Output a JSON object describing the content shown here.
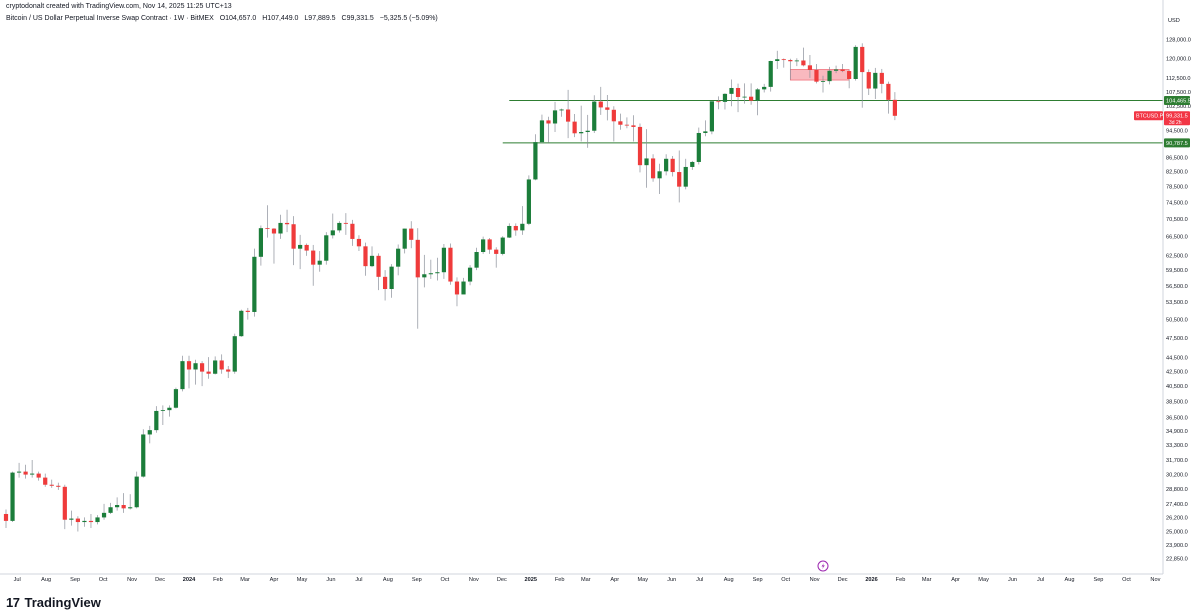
{
  "header": {
    "author": "cryptodonalt",
    "created_text": "created with TradingView.com, Nov 14, 2025 11:25 UTC+13"
  },
  "symbol": {
    "title": "Bitcoin / US Dollar Perpetual Inverse Swap Contract · 1W · BitMEX",
    "open": "O104,657.0",
    "high": "H107,449.0",
    "low": "L97,889.5",
    "close": "C99,331.5",
    "change": "−5,325.5 (−5.09%)"
  },
  "brand": {
    "name": "TradingView",
    "logo_icon": "tradingview-logo-icon"
  },
  "chart_data": {
    "type": "candlestick",
    "currency_label": "USD",
    "interval": "1W",
    "y_scale": "log",
    "ylim": [
      22300,
      132000
    ],
    "grid": false,
    "y_ticks": [
      "128,000.0",
      "120,000.0",
      "112,500.0",
      "107,500.0",
      "102,500.0",
      "94,500.0",
      "86,500.0",
      "82,500.0",
      "78,500.0",
      "74,500.0",
      "70,500.0",
      "66,500.0",
      "62,500.0",
      "59,500.0",
      "56,500.0",
      "53,500.0",
      "50,500.0",
      "47,500.0",
      "44,500.0",
      "42,500.0",
      "40,500.0",
      "38,500.0",
      "36,500.0",
      "34,900.0",
      "33,300.0",
      "31,700.0",
      "30,200.0",
      "28,800.0",
      "27,400.0",
      "26,200.0",
      "25,000.0",
      "23,900.0",
      "22,850.0"
    ],
    "x_ticks": [
      {
        "label": "Jul",
        "date": "2023-07-01",
        "year": false
      },
      {
        "label": "Aug",
        "date": "2023-08-01",
        "year": false
      },
      {
        "label": "Sep",
        "date": "2023-09-01",
        "year": false
      },
      {
        "label": "Oct",
        "date": "2023-10-01",
        "year": false
      },
      {
        "label": "Nov",
        "date": "2023-11-01",
        "year": false
      },
      {
        "label": "Dec",
        "date": "2023-12-01",
        "year": false
      },
      {
        "label": "2024",
        "date": "2024-01-01",
        "year": true
      },
      {
        "label": "Feb",
        "date": "2024-02-01",
        "year": false
      },
      {
        "label": "Mar",
        "date": "2024-03-01",
        "year": false
      },
      {
        "label": "Apr",
        "date": "2024-04-01",
        "year": false
      },
      {
        "label": "May",
        "date": "2024-05-01",
        "year": false
      },
      {
        "label": "Jun",
        "date": "2024-06-01",
        "year": false
      },
      {
        "label": "Jul",
        "date": "2024-07-01",
        "year": false
      },
      {
        "label": "Aug",
        "date": "2024-08-01",
        "year": false
      },
      {
        "label": "Sep",
        "date": "2024-09-01",
        "year": false
      },
      {
        "label": "Oct",
        "date": "2024-10-01",
        "year": false
      },
      {
        "label": "Nov",
        "date": "2024-11-01",
        "year": false
      },
      {
        "label": "Dec",
        "date": "2024-12-01",
        "year": false
      },
      {
        "label": "2025",
        "date": "2025-01-01",
        "year": true
      },
      {
        "label": "Feb",
        "date": "2025-02-01",
        "year": false
      },
      {
        "label": "Mar",
        "date": "2025-03-01",
        "year": false
      },
      {
        "label": "Apr",
        "date": "2025-04-01",
        "year": false
      },
      {
        "label": "May",
        "date": "2025-05-01",
        "year": false
      },
      {
        "label": "Jun",
        "date": "2025-06-01",
        "year": false
      },
      {
        "label": "Jul",
        "date": "2025-07-01",
        "year": false
      },
      {
        "label": "Aug",
        "date": "2025-08-01",
        "year": false
      },
      {
        "label": "Sep",
        "date": "2025-09-01",
        "year": false
      },
      {
        "label": "Oct",
        "date": "2025-10-01",
        "year": false
      },
      {
        "label": "Nov",
        "date": "2025-11-01",
        "year": false
      },
      {
        "label": "Dec",
        "date": "2025-12-01",
        "year": false
      },
      {
        "label": "2026",
        "date": "2026-01-01",
        "year": true
      },
      {
        "label": "Feb",
        "date": "2026-02-01",
        "year": false
      },
      {
        "label": "Mar",
        "date": "2026-03-01",
        "year": false
      },
      {
        "label": "Apr",
        "date": "2026-04-01",
        "year": false
      },
      {
        "label": "May",
        "date": "2026-05-01",
        "year": false
      },
      {
        "label": "Jun",
        "date": "2026-06-01",
        "year": false
      },
      {
        "label": "Jul",
        "date": "2026-07-01",
        "year": false
      },
      {
        "label": "Aug",
        "date": "2026-08-01",
        "year": false
      },
      {
        "label": "Sep",
        "date": "2026-09-01",
        "year": false
      },
      {
        "label": "Oct",
        "date": "2026-10-01",
        "year": false
      },
      {
        "label": "Nov",
        "date": "2026-11-01",
        "year": false
      }
    ],
    "first_candle_date": "2023-06-19",
    "candles": [
      [
        26500,
        26900,
        25300,
        25900
      ],
      [
        25900,
        30500,
        25800,
        30400
      ],
      [
        30400,
        31400,
        29900,
        30500
      ],
      [
        30500,
        31200,
        29800,
        30200
      ],
      [
        30200,
        31700,
        29900,
        30300
      ],
      [
        30300,
        30500,
        29600,
        29900
      ],
      [
        29900,
        30300,
        29000,
        29200
      ],
      [
        29200,
        29700,
        28900,
        29100
      ],
      [
        29100,
        29400,
        28700,
        29000
      ],
      [
        29000,
        29200,
        25200,
        26000
      ],
      [
        26000,
        26800,
        25500,
        26100
      ],
      [
        26100,
        26300,
        25000,
        25800
      ],
      [
        25800,
        26200,
        25400,
        25900
      ],
      [
        25900,
        26500,
        25300,
        25800
      ],
      [
        25800,
        26400,
        25600,
        26200
      ],
      [
        26200,
        27400,
        26000,
        26600
      ],
      [
        26600,
        27500,
        26500,
        27100
      ],
      [
        27100,
        28000,
        26800,
        27300
      ],
      [
        27300,
        28400,
        26600,
        27000
      ],
      [
        27000,
        28300,
        26900,
        27100
      ],
      [
        27100,
        30500,
        27000,
        30000
      ],
      [
        30000,
        35100,
        29900,
        34500
      ],
      [
        34500,
        35500,
        33500,
        35000
      ],
      [
        35000,
        37900,
        34700,
        37300
      ],
      [
        37300,
        38000,
        35600,
        37400
      ],
      [
        37400,
        38000,
        36600,
        37700
      ],
      [
        37700,
        40300,
        37600,
        40100
      ],
      [
        40100,
        44800,
        39800,
        44000
      ],
      [
        44000,
        44800,
        40200,
        42800
      ],
      [
        42800,
        44200,
        40700,
        43700
      ],
      [
        43700,
        44000,
        40500,
        42500
      ],
      [
        42500,
        44600,
        41500,
        42200
      ],
      [
        42200,
        44700,
        42100,
        44100
      ],
      [
        44100,
        45000,
        42200,
        42800
      ],
      [
        42800,
        43300,
        41600,
        42500
      ],
      [
        42500,
        48200,
        42200,
        47800
      ],
      [
        47800,
        52200,
        47700,
        52000
      ],
      [
        52000,
        52500,
        50500,
        51800
      ],
      [
        51800,
        63900,
        51000,
        62200
      ],
      [
        62200,
        69000,
        60400,
        68400
      ],
      [
        68400,
        73800,
        66300,
        68300
      ],
      [
        68300,
        68400,
        60800,
        67200
      ],
      [
        67200,
        71500,
        66000,
        69600
      ],
      [
        69600,
        72700,
        67500,
        69300
      ],
      [
        69300,
        71200,
        60500,
        63900
      ],
      [
        63900,
        66900,
        59700,
        64700
      ],
      [
        64700,
        65000,
        62400,
        63500
      ],
      [
        63500,
        64700,
        56500,
        60600
      ],
      [
        60600,
        63400,
        59200,
        61400
      ],
      [
        61400,
        67500,
        60600,
        66800
      ],
      [
        66800,
        71800,
        66100,
        67900
      ],
      [
        67900,
        70000,
        67400,
        69600
      ],
      [
        69600,
        71900,
        66900,
        69400
      ],
      [
        69400,
        70300,
        64500,
        66000
      ],
      [
        66000,
        66800,
        63400,
        64400
      ],
      [
        64400,
        65200,
        58400,
        60300
      ],
      [
        60300,
        64400,
        60100,
        62400
      ],
      [
        62400,
        62900,
        55700,
        58200
      ],
      [
        58200,
        59500,
        53800,
        55900
      ],
      [
        55900,
        60700,
        54300,
        60200
      ],
      [
        60200,
        64800,
        58500,
        63900
      ],
      [
        63900,
        68300,
        62900,
        68300
      ],
      [
        68300,
        70000,
        64000,
        65800
      ],
      [
        65800,
        68400,
        49000,
        58100
      ],
      [
        58100,
        62600,
        56200,
        58700
      ],
      [
        58700,
        61600,
        57800,
        58900
      ],
      [
        58900,
        62000,
        57500,
        59100
      ],
      [
        59100,
        64900,
        57800,
        64100
      ],
      [
        64100,
        65000,
        56700,
        57300
      ],
      [
        57300,
        58100,
        52800,
        54900
      ],
      [
        54900,
        58000,
        55000,
        57300
      ],
      [
        57300,
        60500,
        56600,
        60000
      ],
      [
        60000,
        64100,
        59500,
        63200
      ],
      [
        63200,
        66500,
        62800,
        65900
      ],
      [
        65900,
        66200,
        62800,
        63700
      ],
      [
        63700,
        64200,
        60000,
        62800
      ],
      [
        62800,
        66600,
        62500,
        66300
      ],
      [
        66300,
        69500,
        66200,
        68900
      ],
      [
        68900,
        69500,
        66700,
        67900
      ],
      [
        67900,
        73600,
        66900,
        69400
      ],
      [
        69400,
        81500,
        69100,
        80400
      ],
      [
        80400,
        93400,
        80200,
        91000
      ],
      [
        91000,
        99700,
        90700,
        97800
      ],
      [
        97800,
        99000,
        90800,
        96800
      ],
      [
        96800,
        104000,
        94100,
        101100
      ],
      [
        101100,
        101700,
        99000,
        101400
      ],
      [
        101400,
        108200,
        92200,
        97400
      ],
      [
        97400,
        99900,
        92500,
        93700
      ],
      [
        93700,
        102700,
        91200,
        94100
      ],
      [
        94100,
        99600,
        89300,
        94500
      ],
      [
        94500,
        106300,
        93800,
        104100
      ],
      [
        104100,
        109300,
        99600,
        102100
      ],
      [
        102100,
        106400,
        97800,
        101300
      ],
      [
        101300,
        102500,
        91200,
        97500
      ],
      [
        97500,
        100000,
        94800,
        96400
      ],
      [
        96400,
        98800,
        95300,
        96200
      ],
      [
        96200,
        99500,
        91200,
        95700
      ],
      [
        95700,
        96800,
        82300,
        84300
      ],
      [
        84300,
        95000,
        78200,
        86200
      ],
      [
        86200,
        87400,
        79800,
        80700
      ],
      [
        80700,
        84700,
        76600,
        82600
      ],
      [
        82600,
        87400,
        81500,
        86100
      ],
      [
        86100,
        86900,
        81200,
        82400
      ],
      [
        82400,
        88500,
        74500,
        78500
      ],
      [
        78500,
        86100,
        77800,
        83800
      ],
      [
        83800,
        85500,
        83000,
        85200
      ],
      [
        85200,
        95500,
        84500,
        93800
      ],
      [
        93800,
        97800,
        92800,
        94300
      ],
      [
        94300,
        104100,
        93400,
        104200
      ],
      [
        104200,
        105900,
        101500,
        104000
      ],
      [
        104000,
        107000,
        101400,
        106800
      ],
      [
        106800,
        112000,
        102500,
        108900
      ],
      [
        108900,
        110500,
        100500,
        105700
      ],
      [
        105700,
        110600,
        103400,
        105800
      ],
      [
        105800,
        110600,
        103000,
        104400
      ],
      [
        104400,
        108900,
        99500,
        108400
      ],
      [
        108400,
        110400,
        107300,
        109300
      ],
      [
        109300,
        119200,
        107600,
        119100
      ],
      [
        119100,
        123200,
        116000,
        119800
      ],
      [
        119800,
        120100,
        116500,
        119500
      ],
      [
        119500,
        120000,
        112000,
        119000
      ],
      [
        119000,
        120200,
        117100,
        119300
      ],
      [
        119300,
        124500,
        117000,
        117400
      ],
      [
        117400,
        121500,
        112600,
        115600
      ],
      [
        115600,
        117900,
        110600,
        111200
      ],
      [
        111200,
        113400,
        107300,
        111400
      ],
      [
        111400,
        116800,
        110200,
        115300
      ],
      [
        115300,
        117300,
        114400,
        115800
      ],
      [
        115800,
        117900,
        114800,
        115200
      ],
      [
        115200,
        115700,
        108800,
        112200
      ],
      [
        112200,
        125500,
        111600,
        124800
      ],
      [
        124800,
        126300,
        102000,
        114800
      ],
      [
        114800,
        115800,
        106400,
        108700
      ],
      [
        108700,
        116400,
        105000,
        114500
      ],
      [
        114500,
        116000,
        107000,
        110400
      ],
      [
        110400,
        111200,
        100000,
        104700
      ],
      [
        104700,
        107400,
        97900,
        99300
      ]
    ],
    "hlines": [
      {
        "price": 104465.5,
        "label": "104,465.5",
        "start_date": "2024-12-09",
        "color": "#2e7d32"
      },
      {
        "price": 90787.5,
        "label": "90,787.5",
        "start_date": "2024-12-02",
        "color": "#2e7d32"
      }
    ],
    "zone": {
      "top": 115800,
      "bottom": 111800,
      "start_date": "2025-10-06",
      "end_date": "2025-12-08",
      "color": "#f7a1a9"
    },
    "last_price": {
      "label": "BTCUSD.P",
      "value": "99,331.5",
      "countdown": "3d 2h",
      "color": "#f23645"
    },
    "colors": {
      "up": "#1b7d3a",
      "down": "#ef3b3b",
      "wick": "#8a8f99",
      "axis": "#131722",
      "border": "#d1d4dc"
    },
    "event_icon": "lightning-event-icon"
  }
}
